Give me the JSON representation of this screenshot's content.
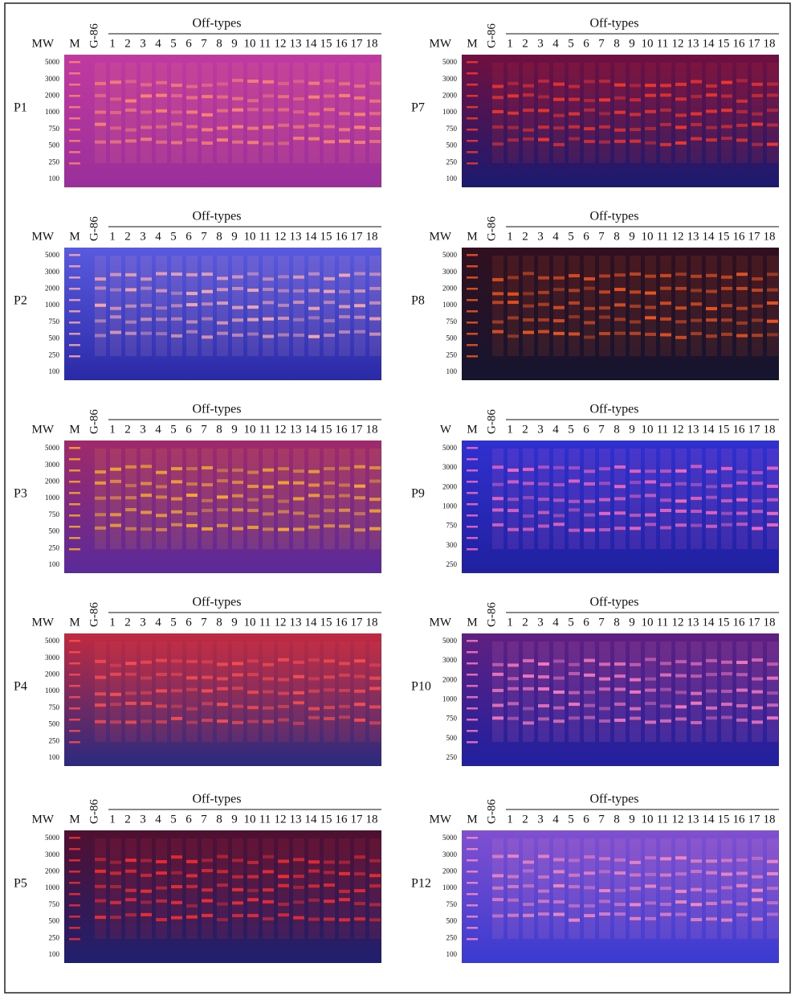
{
  "marker": "M",
  "control": "G-86",
  "group": "Off-types",
  "lanes": [
    "1",
    "2",
    "3",
    "4",
    "5",
    "6",
    "7",
    "8",
    "9",
    "10",
    "11",
    "12",
    "13",
    "14",
    "15",
    "16",
    "17",
    "18"
  ],
  "panels": [
    {
      "label": "P1",
      "mw": "MW",
      "ladder": [
        "5000",
        "3000",
        "2000",
        "1000",
        "750",
        "500",
        "250",
        "100"
      ]
    },
    {
      "label": "P2",
      "mw": "MW",
      "ladder": [
        "5000",
        "3000",
        "2000",
        "1000",
        "750",
        "500",
        "250",
        "100"
      ]
    },
    {
      "label": "P3",
      "mw": "MW",
      "ladder": [
        "5000",
        "3000",
        "2000",
        "1000",
        "750",
        "500",
        "250",
        "100"
      ]
    },
    {
      "label": "P4",
      "mw": "MW",
      "ladder": [
        "5000",
        "3000",
        "2000",
        "1000",
        "750",
        "500",
        "250",
        "100"
      ]
    },
    {
      "label": "P5",
      "mw": "MW",
      "ladder": [
        "5000",
        "3000",
        "2000",
        "1000",
        "750",
        "500",
        "250",
        "100"
      ]
    },
    {
      "label": "P7",
      "mw": "MW",
      "ladder": [
        "5000",
        "3000",
        "2000",
        "1000",
        "750",
        "500",
        "250",
        "100"
      ]
    },
    {
      "label": "P8",
      "mw": "MW",
      "ladder": [
        "5000",
        "3000",
        "2000",
        "1000",
        "750",
        "500",
        "250",
        "100"
      ]
    },
    {
      "label": "P9",
      "mw": "W",
      "ladder": [
        "5000",
        "3000",
        "2000",
        "1000",
        "750",
        "300",
        "250"
      ]
    },
    {
      "label": "P10",
      "mw": "MW",
      "ladder": [
        "5000",
        "3000",
        "2000",
        "1000",
        "750",
        "500",
        "250"
      ]
    },
    {
      "label": "P12",
      "mw": "MW",
      "ladder": [
        "5000",
        "3000",
        "2000",
        "1000",
        "750",
        "500",
        "250",
        "100"
      ]
    }
  ]
}
